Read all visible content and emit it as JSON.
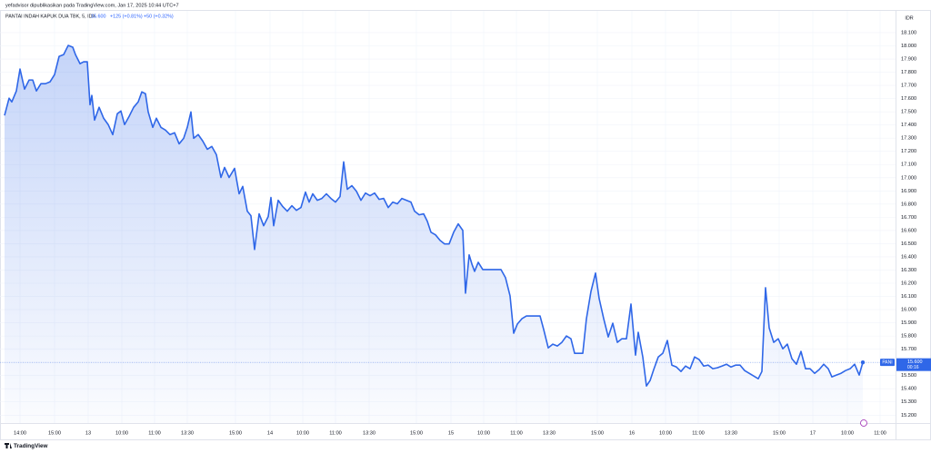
{
  "chart_data": {
    "type": "area",
    "title": "yefadvisor dipublikasikan pada TradingView.com, Jan 17, 2025 10:44 UTC+7",
    "legend": {
      "name": "PANTAI INDAH KAPUK DUA TBK, 5, IDX",
      "last": "15.600",
      "change": "+125 (+0.81%)",
      "change2": "+50 (+0.32%)"
    },
    "currency": "IDR",
    "brand": "TradingView",
    "last_price": {
      "symbol": "PANI",
      "value": 15600,
      "label": "15.600",
      "countdown": "00:16"
    },
    "series": [
      {
        "name": "PANTAI INDAH KAPUK DUA TBK, 5, IDX",
        "color": "#2f67e8",
        "values": [
          17472,
          17603,
          17575,
          17658,
          17824,
          17672,
          17741,
          17741,
          17658,
          17713,
          17713,
          17727,
          17782,
          17920,
          17934,
          18003,
          17990,
          17934,
          17865,
          17879,
          17879,
          17554,
          17624,
          17437,
          17534,
          17451,
          17403,
          17327,
          17485,
          17506,
          17403,
          17465,
          17534,
          17575,
          17651,
          17637,
          17499,
          17382,
          17451,
          17382,
          17361,
          17327,
          17341,
          17257,
          17299,
          17382,
          17499,
          17299,
          17327,
          17278,
          17216,
          17237,
          17175,
          17002,
          17078,
          17002,
          17071,
          16878,
          16934,
          16746,
          16712,
          16456,
          16726,
          16636,
          16705,
          16850,
          16636,
          16829,
          16781,
          16746,
          16788,
          16753,
          16774,
          16891,
          16815,
          16878,
          16829,
          16843,
          16878,
          16843,
          16815,
          16857,
          17120,
          16912,
          16940,
          16898,
          16829,
          16884,
          16864,
          16884,
          16836,
          16843,
          16774,
          16815,
          16802,
          16843,
          16829,
          16815,
          16746,
          16719,
          16726,
          16670,
          16587,
          16567,
          16525,
          16498,
          16498,
          16587,
          16650,
          16601,
          16125,
          16415,
          16346,
          16290,
          16359,
          16304,
          16304,
          16304,
          16304,
          16304,
          16242,
          16104,
          15821,
          15890,
          15931,
          15952,
          15952,
          15952,
          15952,
          15849,
          15710,
          15738,
          15724,
          15752,
          15800,
          15779,
          15669,
          15669,
          15669,
          15931,
          16138,
          16277,
          16084,
          15931,
          15793,
          15897,
          15752,
          15779,
          15779,
          16042,
          15655,
          15828,
          15641,
          15421,
          15462,
          15545,
          15641,
          15669,
          15766,
          15579,
          15565,
          15531,
          15572,
          15552,
          15641,
          15621,
          15572,
          15579,
          15552,
          15559,
          15572,
          15586,
          15565,
          15579,
          15579,
          15538,
          15517,
          15497,
          15476,
          15531,
          16166,
          15862,
          15752,
          15779,
          15703,
          15738,
          15628,
          15586,
          15683,
          15552,
          15552,
          15517,
          15545,
          15586,
          15552,
          15490,
          15504,
          15517,
          15538,
          15552,
          15586,
          15504,
          15600
        ]
      }
    ],
    "x": [
      0,
      1,
      1.6,
      2.6,
      3.4,
      4.4,
      5.4,
      6.2,
      7,
      8,
      9,
      10,
      11,
      12,
      13,
      14,
      15,
      15.6,
      16.6,
      17.4,
      18.2,
      18.8,
      19.2,
      19.8,
      20.8,
      21.8,
      22.8,
      23.8,
      24.8,
      25.6,
      26.4,
      27.4,
      28.4,
      29.4,
      30.2,
      31,
      31.6,
      32.6,
      33.4,
      34.4,
      35.4,
      36.4,
      37.4,
      38.4,
      39.4,
      40.2,
      41,
      41.6,
      42.6,
      43.6,
      44.6,
      45.6,
      46.6,
      47.6,
      48.4,
      49.4,
      50.6,
      51.6,
      52.4,
      53.4,
      54.2,
      55,
      56,
      57,
      58,
      58.6,
      59.2,
      60.2,
      61.2,
      62.2,
      63.2,
      64.2,
      65.2,
      66.2,
      67,
      67.8,
      68.8,
      69.8,
      70.8,
      71.8,
      72.8,
      73.8,
      74.6,
      75.4,
      76.4,
      77.4,
      78.4,
      79.4,
      80.4,
      81.4,
      82.4,
      83.4,
      84.4,
      85.4,
      86.4,
      87.4,
      88.4,
      89.4,
      90.2,
      91.2,
      92.2,
      93,
      93.8,
      94.8,
      95.8,
      96.8,
      97.8,
      98.8,
      99.8,
      100.8,
      101.4,
      102.2,
      102.8,
      103.4,
      104.2,
      105.2,
      106.2,
      107.2,
      108.2,
      109.2,
      110.2,
      111.2,
      112,
      112.8,
      113.8,
      114.8,
      115.8,
      116.8,
      117.8,
      118.6,
      119.6,
      120.6,
      121.6,
      122.6,
      123.6,
      124.6,
      125.4,
      126.4,
      127.2,
      128,
      129,
      130,
      130.8,
      131.8,
      132.8,
      133.8,
      134.8,
      135.8,
      136.8,
      137.8,
      138.8,
      139.4,
      140.4,
      141.2,
      142,
      142.8,
      143.8,
      144.8,
      145.8,
      146.8,
      147.8,
      148.8,
      149.8,
      150.8,
      151.8,
      152.8,
      153.8,
      154.8,
      155.8,
      156.8,
      157.8,
      158.8,
      159.8,
      160.8,
      161.8,
      162.8,
      163.8,
      164.8,
      165.8,
      166.6,
      167.4,
      168.2,
      169.2,
      170.2,
      171.2,
      172.2,
      173.2,
      174.2,
      175.2,
      176.2,
      177.2,
      178.2,
      179.2,
      180.2,
      181.2,
      182,
      183,
      184,
      185,
      186,
      187,
      188,
      188.8
    ],
    "xlim": [
      -1,
      196
    ],
    "xticks": [
      {
        "value": 3.4,
        "label": "14:00"
      },
      {
        "value": 11,
        "label": "15:00"
      },
      {
        "value": 18.4,
        "label": "13"
      },
      {
        "value": 25.8,
        "label": "10:00"
      },
      {
        "value": 33,
        "label": "11:00"
      },
      {
        "value": 40.2,
        "label": "13:30"
      },
      {
        "value": 50.8,
        "label": "15:00"
      },
      {
        "value": 58.4,
        "label": "14"
      },
      {
        "value": 65.6,
        "label": "10:00"
      },
      {
        "value": 72.8,
        "label": "11:00"
      },
      {
        "value": 80.2,
        "label": "13:30"
      },
      {
        "value": 90.6,
        "label": "15:00"
      },
      {
        "value": 98.2,
        "label": "15"
      },
      {
        "value": 105.4,
        "label": "10:00"
      },
      {
        "value": 112.6,
        "label": "11:00"
      },
      {
        "value": 119.8,
        "label": "13:30"
      },
      {
        "value": 130.4,
        "label": "15:00"
      },
      {
        "value": 138,
        "label": "16"
      },
      {
        "value": 145.4,
        "label": "10:00"
      },
      {
        "value": 152.6,
        "label": "11:00"
      },
      {
        "value": 159.8,
        "label": "13:30"
      },
      {
        "value": 170.4,
        "label": "15:00"
      },
      {
        "value": 177.8,
        "label": "17"
      },
      {
        "value": 185.4,
        "label": "10:00"
      },
      {
        "value": 192.6,
        "label": "11:00"
      }
    ],
    "ylim": [
      15140,
      18265
    ],
    "yticks": [
      {
        "value": 15200,
        "label": "15.200"
      },
      {
        "value": 15300,
        "label": "15.300"
      },
      {
        "value": 15400,
        "label": "15.400"
      },
      {
        "value": 15500,
        "label": "15.500"
      },
      {
        "value": 15600,
        "label": "15.600"
      },
      {
        "value": 15700,
        "label": "15.700"
      },
      {
        "value": 15800,
        "label": "15.800"
      },
      {
        "value": 15900,
        "label": "15.900"
      },
      {
        "value": 16000,
        "label": "16.000"
      },
      {
        "value": 16100,
        "label": "16.100"
      },
      {
        "value": 16200,
        "label": "16.200"
      },
      {
        "value": 16300,
        "label": "16.300"
      },
      {
        "value": 16400,
        "label": "16.400"
      },
      {
        "value": 16500,
        "label": "16.500"
      },
      {
        "value": 16600,
        "label": "16.600"
      },
      {
        "value": 16700,
        "label": "16.700"
      },
      {
        "value": 16800,
        "label": "16.800"
      },
      {
        "value": 16900,
        "label": "16.900"
      },
      {
        "value": 17000,
        "label": "17.000"
      },
      {
        "value": 17100,
        "label": "17.100"
      },
      {
        "value": 17200,
        "label": "17.200"
      },
      {
        "value": 17300,
        "label": "17.300"
      },
      {
        "value": 17400,
        "label": "17.400"
      },
      {
        "value": 17500,
        "label": "17.500"
      },
      {
        "value": 17600,
        "label": "17.600"
      },
      {
        "value": 17700,
        "label": "17.700"
      },
      {
        "value": 17800,
        "label": "17.800"
      },
      {
        "value": 17900,
        "label": "17.900"
      },
      {
        "value": 18000,
        "label": "18.000"
      },
      {
        "value": 18100,
        "label": "18.100"
      }
    ],
    "grid": true
  }
}
